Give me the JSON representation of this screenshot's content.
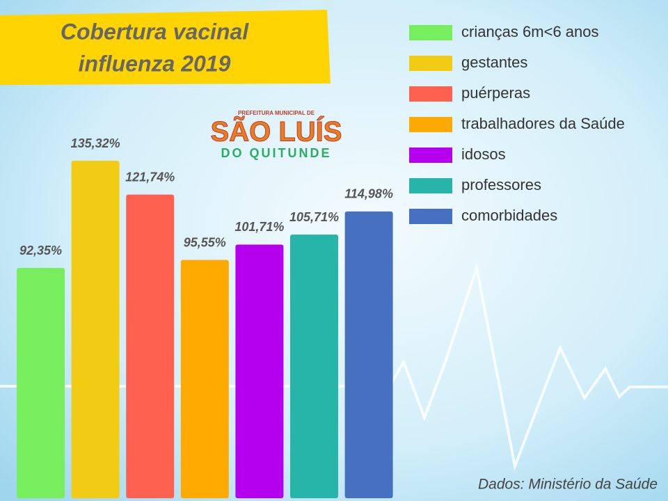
{
  "chart_data": {
    "type": "bar",
    "title": "Cobertura vacinal influenza 2019",
    "categories": [
      "crianças 6m<6 anos",
      "gestantes",
      "puérperas",
      "trabalhadores da Saúde",
      "idosos",
      "professores",
      "comorbidades"
    ],
    "values": [
      92.35,
      135.32,
      121.74,
      95.55,
      101.71,
      105.71,
      114.98
    ],
    "value_labels": [
      "92,35%",
      "135,32%",
      "121,74%",
      "95,55%",
      "101,71%",
      "105,71%",
      "114,98%"
    ],
    "colors": [
      "#77ee5e",
      "#f2cc14",
      "#ff6150",
      "#ffaa00",
      "#b400ee",
      "#27b5a9",
      "#4670c0"
    ],
    "source": "Dados: Ministério da Saúde"
  },
  "logo": {
    "top": "PREFEITURA MUNICIPAL DE",
    "name": "SÃO LUÍS",
    "bottom": "DO QUITUNDE"
  }
}
